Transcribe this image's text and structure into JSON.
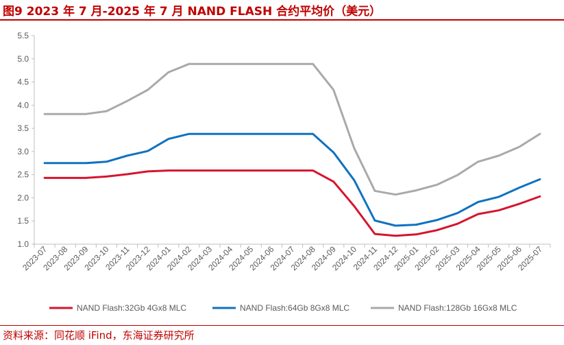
{
  "header": {
    "title": "图9  2023 年 7 月-2025 年 7 月 NAND FLASH 合约平均价（美元）"
  },
  "footer": {
    "source": "资料来源：同花顺 iFind，东海证券研究所"
  },
  "colors": {
    "accent": "#c00000",
    "series": [
      "#d6142e",
      "#0f72c0",
      "#a9a9a9"
    ],
    "axis": "#bfbfbf",
    "text": "#595959"
  },
  "chart_data": {
    "type": "line",
    "title": "2023 年 7 月-2025 年 7 月 NAND FLASH 合约平均价（美元）",
    "xlabel": "",
    "ylabel": "",
    "ylim": [
      1.0,
      5.5
    ],
    "yticks": [
      "1.0",
      "1.5",
      "2.0",
      "2.5",
      "3.0",
      "3.5",
      "4.0",
      "4.5",
      "5.0",
      "5.5"
    ],
    "grid": false,
    "legend_position": "bottom",
    "categories": [
      "2023-07",
      "2023-08",
      "2023-09",
      "2023-10",
      "2023-11",
      "2023-12",
      "2024-01",
      "2024-02",
      "2024-03",
      "2024-04",
      "2024-05",
      "2024-06",
      "2024-07",
      "2024-08",
      "2024-09",
      "2024-10",
      "2024-11",
      "2024-12",
      "2025-01",
      "2025-02",
      "2025-03",
      "2025-04",
      "2025-05",
      "2025-06",
      "2025-07"
    ],
    "series": [
      {
        "name": "NAND Flash:32Gb 4Gx8 MLC",
        "values": [
          2.43,
          2.43,
          2.43,
          2.46,
          2.51,
          2.57,
          2.59,
          2.59,
          2.59,
          2.59,
          2.59,
          2.59,
          2.59,
          2.59,
          2.35,
          1.82,
          1.22,
          1.18,
          1.21,
          1.3,
          1.44,
          1.65,
          1.73,
          1.87,
          2.03
        ]
      },
      {
        "name": "NAND Flash:64Gb 8Gx8 MLC",
        "values": [
          2.75,
          2.75,
          2.75,
          2.78,
          2.91,
          3.01,
          3.27,
          3.38,
          3.38,
          3.38,
          3.38,
          3.38,
          3.38,
          3.38,
          2.98,
          2.38,
          1.51,
          1.4,
          1.42,
          1.52,
          1.67,
          1.91,
          2.02,
          2.22,
          2.4
        ]
      },
      {
        "name": "NAND Flash:128Gb 16Gx8 MLC",
        "values": [
          3.81,
          3.81,
          3.81,
          3.87,
          4.09,
          4.33,
          4.71,
          4.89,
          4.89,
          4.89,
          4.89,
          4.89,
          4.89,
          4.89,
          4.33,
          3.07,
          2.15,
          2.07,
          2.16,
          2.28,
          2.49,
          2.78,
          2.91,
          3.1,
          3.38
        ]
      }
    ]
  }
}
